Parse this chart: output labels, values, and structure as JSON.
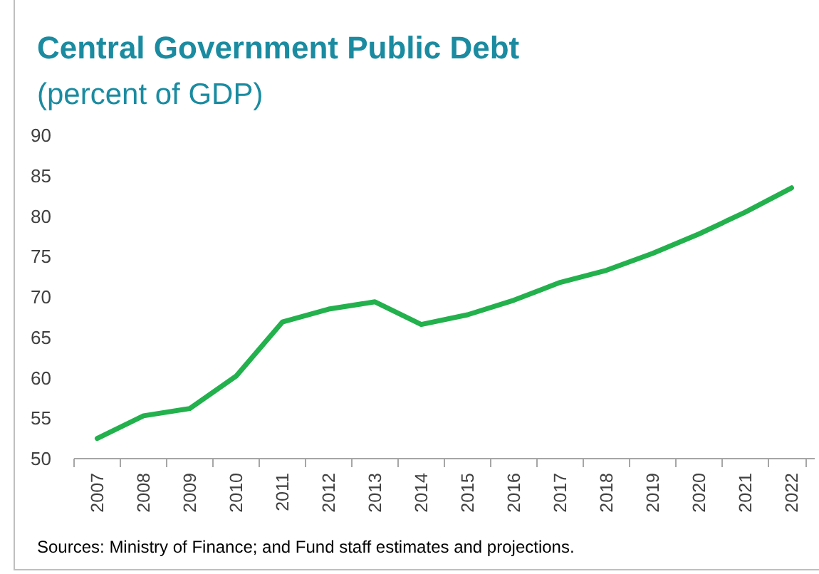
{
  "chart_data": {
    "type": "line",
    "title": "Central Government Public Debt",
    "subtitle": "(percent of GDP)",
    "categories": [
      "2007",
      "2008",
      "2009",
      "2010",
      "2011",
      "2012",
      "2013",
      "2014",
      "2015",
      "2016",
      "2017",
      "2018",
      "2019",
      "2020",
      "2021",
      "2022"
    ],
    "series": [
      {
        "color": "#22b14c",
        "values": [
          52.5,
          55.3,
          56.2,
          60.2,
          66.9,
          68.5,
          69.4,
          66.6,
          67.8,
          69.6,
          71.8,
          73.3,
          75.4,
          77.8,
          80.5,
          83.5
        ]
      }
    ],
    "ylim": [
      50,
      90
    ],
    "yticks": [
      50,
      55,
      60,
      65,
      70,
      75,
      80,
      85,
      90
    ],
    "marker": "none",
    "line_style": "solid",
    "annotations": [
      "Sources: Ministry of Finance; and Fund staff estimates and projections."
    ]
  }
}
